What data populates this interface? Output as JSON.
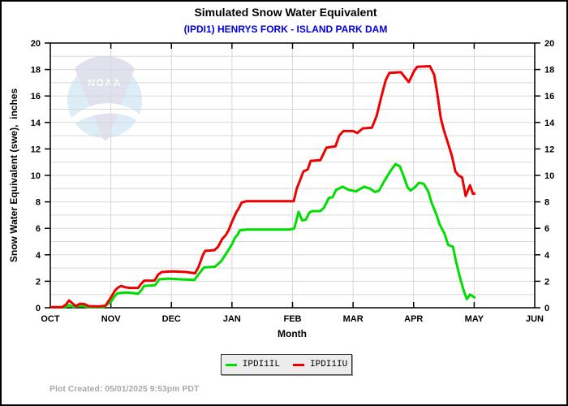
{
  "header": {
    "title": "Simulated Snow Water Equivalent",
    "subtitle": "(IPDI1) HENRYS FORK - ISLAND PARK DAM"
  },
  "watermark": {
    "text": "NOAA"
  },
  "footer": {
    "plot_created": "Plot Created: 05/01/2025 9:53pm PDT"
  },
  "colors": {
    "title": "#000000",
    "subtitle": "#0000dd",
    "grid": "#d8d8d8",
    "frame": "#000000",
    "lower_series": "#00dd00",
    "upper_series": "#ee0000",
    "legend_bg": "#ececec",
    "footer_text": "#a9a9a9",
    "watermark_wedge": "#dcdcea",
    "watermark_circle": "#d7eaf6"
  },
  "chart_data": {
    "type": "line",
    "title": "Simulated Snow Water Equivalent",
    "subtitle": "(IPDI1) HENRYS FORK - ISLAND PARK DAM",
    "xlabel": "Month",
    "ylabel": "Snow Water Equivalent (swe),  inches",
    "x_ticks": [
      "OCT",
      "NOV",
      "DEC",
      "JAN",
      "FEB",
      "MAR",
      "APR",
      "MAY",
      "JUN"
    ],
    "x_units": "months after Oct 1 (0 = OCT, 8 = JUN)",
    "y_ticks": [
      0,
      2,
      4,
      6,
      8,
      10,
      12,
      14,
      16,
      18,
      20
    ],
    "xlim": [
      0,
      8
    ],
    "ylim": [
      0,
      20
    ],
    "grid": true,
    "legend_position": "bottom-center",
    "series": [
      {
        "name": "IPDI1IL",
        "color": "#00dd00",
        "points": [
          [
            0,
            0.03
          ],
          [
            0.2,
            0.03
          ],
          [
            0.27,
            0.1
          ],
          [
            0.31,
            0.2
          ],
          [
            0.38,
            0.07
          ],
          [
            0.48,
            0.15
          ],
          [
            0.55,
            0.12
          ],
          [
            0.62,
            0.06
          ],
          [
            0.88,
            0.05
          ],
          [
            1.0,
            0.45
          ],
          [
            1.07,
            0.9
          ],
          [
            1.11,
            1.1
          ],
          [
            1.25,
            1.15
          ],
          [
            1.4,
            1.1
          ],
          [
            1.45,
            1.05
          ],
          [
            1.5,
            1.3
          ],
          [
            1.55,
            1.65
          ],
          [
            1.73,
            1.7
          ],
          [
            1.8,
            2.15
          ],
          [
            1.95,
            2.2
          ],
          [
            2.15,
            2.15
          ],
          [
            2.38,
            2.1
          ],
          [
            2.46,
            2.6
          ],
          [
            2.54,
            3.05
          ],
          [
            2.72,
            3.1
          ],
          [
            2.82,
            3.5
          ],
          [
            2.92,
            4.2
          ],
          [
            3.0,
            4.8
          ],
          [
            3.05,
            5.3
          ],
          [
            3.09,
            5.5
          ],
          [
            3.13,
            5.85
          ],
          [
            3.25,
            5.9
          ],
          [
            3.96,
            5.9
          ],
          [
            4.03,
            6.0
          ],
          [
            4.1,
            7.25
          ],
          [
            4.16,
            6.6
          ],
          [
            4.22,
            6.65
          ],
          [
            4.28,
            7.2
          ],
          [
            4.33,
            7.3
          ],
          [
            4.46,
            7.3
          ],
          [
            4.52,
            7.55
          ],
          [
            4.6,
            8.3
          ],
          [
            4.66,
            8.35
          ],
          [
            4.72,
            8.9
          ],
          [
            4.83,
            9.15
          ],
          [
            4.93,
            8.9
          ],
          [
            5.05,
            8.8
          ],
          [
            5.18,
            9.15
          ],
          [
            5.28,
            9.0
          ],
          [
            5.36,
            8.75
          ],
          [
            5.43,
            8.85
          ],
          [
            5.52,
            9.6
          ],
          [
            5.62,
            10.35
          ],
          [
            5.7,
            10.85
          ],
          [
            5.77,
            10.7
          ],
          [
            5.83,
            10.0
          ],
          [
            5.9,
            9.1
          ],
          [
            5.95,
            8.85
          ],
          [
            6.02,
            9.1
          ],
          [
            6.09,
            9.45
          ],
          [
            6.17,
            9.35
          ],
          [
            6.24,
            8.8
          ],
          [
            6.3,
            7.9
          ],
          [
            6.38,
            7.0
          ],
          [
            6.43,
            6.3
          ],
          [
            6.51,
            5.6
          ],
          [
            6.57,
            4.75
          ],
          [
            6.65,
            4.6
          ],
          [
            6.7,
            3.5
          ],
          [
            6.77,
            2.2
          ],
          [
            6.83,
            1.25
          ],
          [
            6.88,
            0.65
          ],
          [
            6.93,
            1.0
          ],
          [
            6.98,
            0.85
          ],
          [
            7.02,
            0.75
          ]
        ]
      },
      {
        "name": "IPDI1IU",
        "color": "#ee0000",
        "points": [
          [
            0,
            0.05
          ],
          [
            0.2,
            0.05
          ],
          [
            0.26,
            0.25
          ],
          [
            0.31,
            0.55
          ],
          [
            0.36,
            0.35
          ],
          [
            0.42,
            0.12
          ],
          [
            0.49,
            0.3
          ],
          [
            0.56,
            0.28
          ],
          [
            0.63,
            0.12
          ],
          [
            0.8,
            0.1
          ],
          [
            0.91,
            0.15
          ],
          [
            0.99,
            0.7
          ],
          [
            1.07,
            1.3
          ],
          [
            1.11,
            1.5
          ],
          [
            1.17,
            1.65
          ],
          [
            1.23,
            1.55
          ],
          [
            1.31,
            1.5
          ],
          [
            1.45,
            1.5
          ],
          [
            1.5,
            1.8
          ],
          [
            1.55,
            2.05
          ],
          [
            1.72,
            2.05
          ],
          [
            1.78,
            2.5
          ],
          [
            1.84,
            2.7
          ],
          [
            2.01,
            2.75
          ],
          [
            2.25,
            2.7
          ],
          [
            2.39,
            2.6
          ],
          [
            2.45,
            3.1
          ],
          [
            2.52,
            4.0
          ],
          [
            2.56,
            4.3
          ],
          [
            2.71,
            4.35
          ],
          [
            2.77,
            4.6
          ],
          [
            2.84,
            5.2
          ],
          [
            2.9,
            5.5
          ],
          [
            2.95,
            5.9
          ],
          [
            3.0,
            6.5
          ],
          [
            3.07,
            7.2
          ],
          [
            3.11,
            7.5
          ],
          [
            3.16,
            7.95
          ],
          [
            3.24,
            8.05
          ],
          [
            4.02,
            8.05
          ],
          [
            4.07,
            9.0
          ],
          [
            4.13,
            9.7
          ],
          [
            4.18,
            10.3
          ],
          [
            4.25,
            10.45
          ],
          [
            4.3,
            11.1
          ],
          [
            4.46,
            11.15
          ],
          [
            4.56,
            12.1
          ],
          [
            4.71,
            12.2
          ],
          [
            4.77,
            13.0
          ],
          [
            4.84,
            13.35
          ],
          [
            5.0,
            13.35
          ],
          [
            5.07,
            13.2
          ],
          [
            5.16,
            13.55
          ],
          [
            5.31,
            13.6
          ],
          [
            5.39,
            14.5
          ],
          [
            5.47,
            16.0
          ],
          [
            5.54,
            17.2
          ],
          [
            5.6,
            17.75
          ],
          [
            5.79,
            17.8
          ],
          [
            5.86,
            17.4
          ],
          [
            5.92,
            17.05
          ],
          [
            6.01,
            17.9
          ],
          [
            6.06,
            18.2
          ],
          [
            6.27,
            18.25
          ],
          [
            6.34,
            17.6
          ],
          [
            6.39,
            16.2
          ],
          [
            6.45,
            14.3
          ],
          [
            6.5,
            13.4
          ],
          [
            6.57,
            12.4
          ],
          [
            6.63,
            11.5
          ],
          [
            6.69,
            10.3
          ],
          [
            6.74,
            10.0
          ],
          [
            6.8,
            9.85
          ],
          [
            6.86,
            8.45
          ],
          [
            6.93,
            9.25
          ],
          [
            6.98,
            8.6
          ],
          [
            7.02,
            8.65
          ]
        ]
      }
    ]
  },
  "legend": {
    "items": [
      {
        "label": "IPDI1IL"
      },
      {
        "label": "IPDI1IU"
      }
    ]
  }
}
